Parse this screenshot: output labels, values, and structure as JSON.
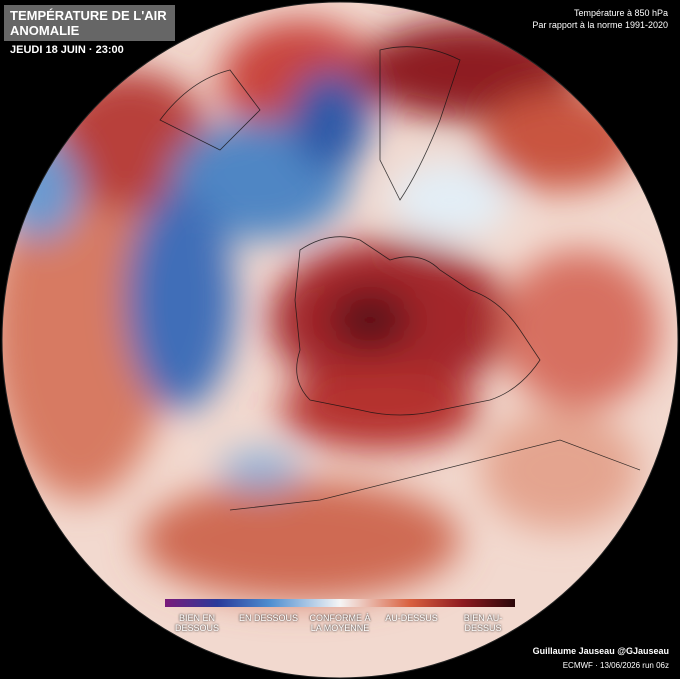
{
  "header": {
    "title": [
      "TEMPÉRATURE DE L'AIR",
      "ANOMALIE"
    ],
    "date": "JEUDI 18 JUIN · 23:00"
  },
  "info": [
    "Température à 850 hPa",
    "Par rapport à la norme 1991-2020"
  ],
  "legend": {
    "labels": [
      "BIEN EN DESSOUS",
      "EN DESSOUS",
      "CONFORME À LA MOYENNE",
      "AU-DESSUS",
      "BIEN AU-DESSUS"
    ]
  },
  "footer": {
    "credit": "Guillaume Jauseau @GJauseau",
    "source": "ECMWF · 13/06/2026 run 06z"
  }
}
